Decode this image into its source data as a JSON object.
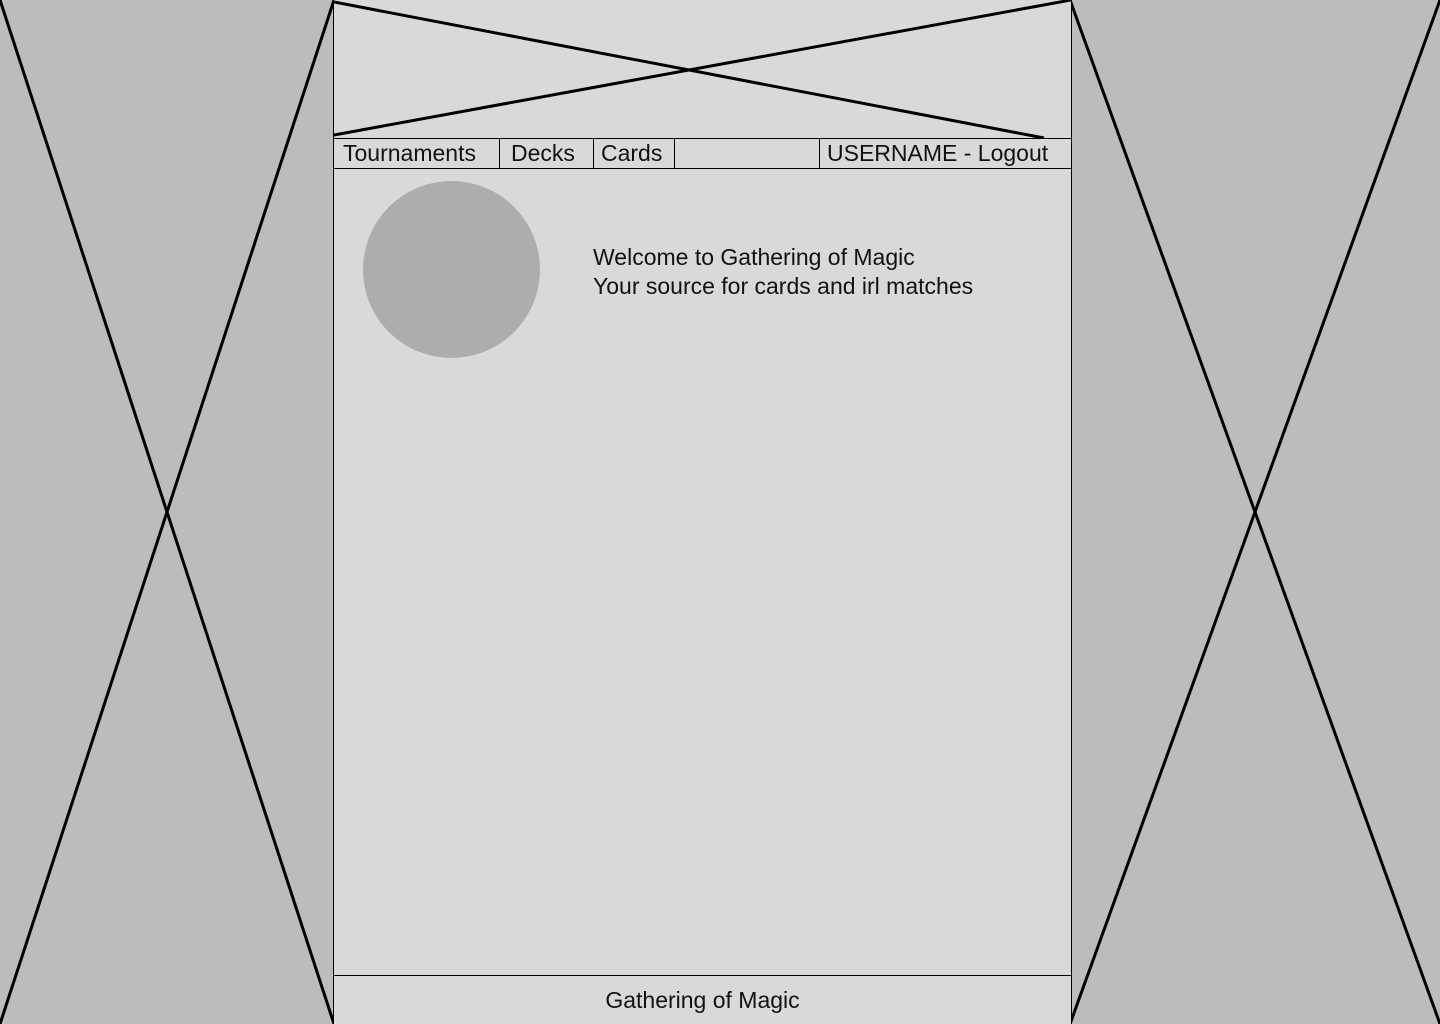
{
  "nav": {
    "tournaments": "Tournaments",
    "decks": "Decks",
    "cards": "Cards",
    "user": "USERNAME - Logout"
  },
  "hero": {
    "welcome": "Welcome to Gathering of Magic",
    "tagline": "Your source for cards and irl matches"
  },
  "footer": {
    "text": "Gathering of Magic"
  },
  "colors": {
    "side_background": "#bcbcbc",
    "page_background": "#d9d9d9",
    "avatar": "#adadad",
    "stroke": "#000000"
  }
}
